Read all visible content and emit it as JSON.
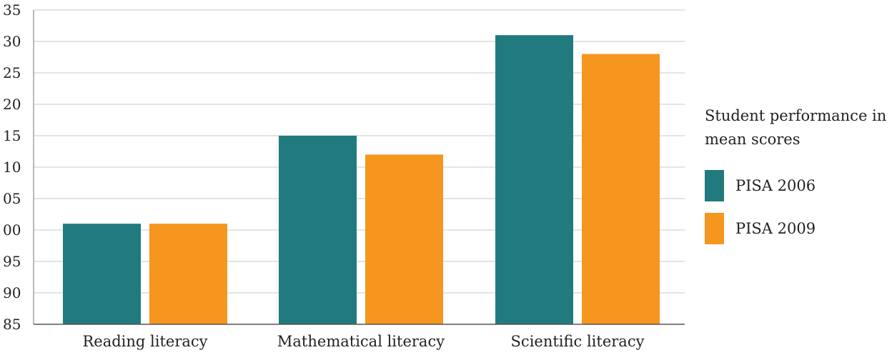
{
  "chart_data": {
    "type": "bar",
    "categories": [
      "Reading literacy",
      "Mathematical literacy",
      "Scientific literacy"
    ],
    "series": [
      {
        "name": "PISA 2006",
        "color": "#217a7e",
        "values": [
          101,
          115,
          131
        ]
      },
      {
        "name": "PISA 2009",
        "color": "#f5961f",
        "values": [
          101,
          112,
          128
        ]
      }
    ],
    "yticks": [
      "85",
      "90",
      "95",
      "00",
      "05",
      "10",
      "15",
      "20",
      "25",
      "30",
      "35"
    ],
    "ylim": [
      85,
      135
    ],
    "grid": true,
    "legend_title": "Student performance in mean scores",
    "legend_position": "right"
  }
}
